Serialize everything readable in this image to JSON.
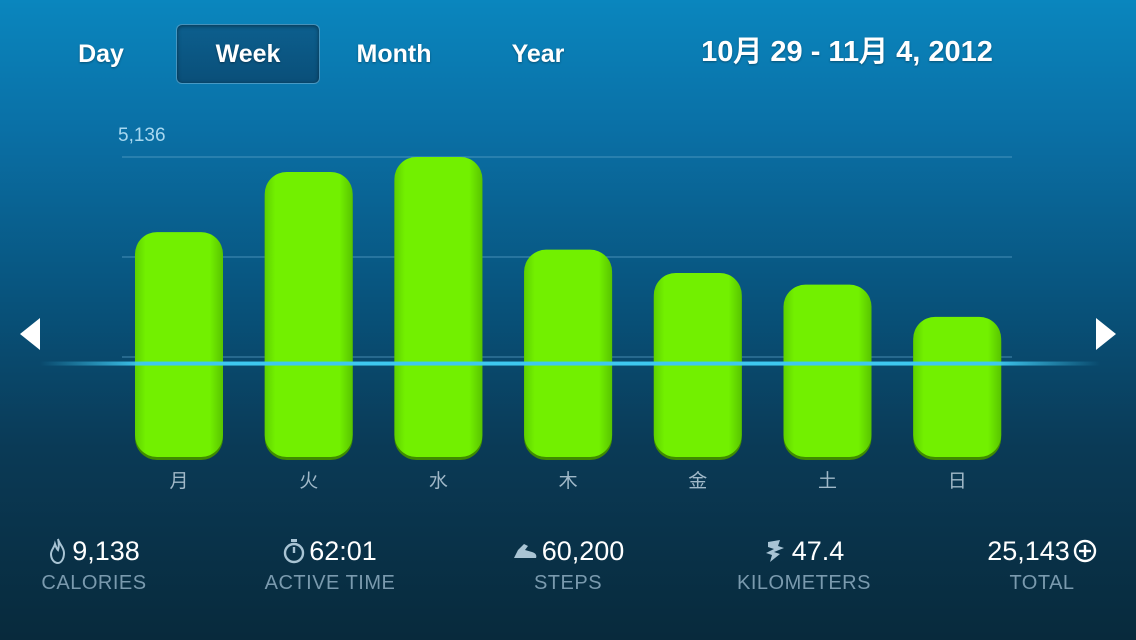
{
  "tabs": [
    {
      "label": "Day",
      "active": false
    },
    {
      "label": "Week",
      "active": true
    },
    {
      "label": "Month",
      "active": false
    },
    {
      "label": "Year",
      "active": false
    }
  ],
  "date_range": "10月 29 - 11月 4, 2012",
  "navigation": {
    "prev_icon": "triangle-left-icon",
    "next_icon": "triangle-right-icon"
  },
  "chart_data": {
    "type": "bar",
    "categories": [
      "月",
      "火",
      "水",
      "木",
      "金",
      "土",
      "日"
    ],
    "values": [
      3850,
      4880,
      5136,
      3550,
      3150,
      2950,
      2400
    ],
    "max_label": "5,136",
    "ylim": [
      0,
      5136
    ],
    "goal_line_value": 1600,
    "grid": true,
    "colors": {
      "bar": "#6ff000",
      "bar_shadow": "#3f8c00",
      "goal_line": "#3ec8f0",
      "grid": "#5fa5cc"
    }
  },
  "stats": [
    {
      "value": "9,138",
      "label": "CALORIES",
      "icon": "flame-icon"
    },
    {
      "value": "62:01",
      "label": "ACTIVE TIME",
      "icon": "stopwatch-icon"
    },
    {
      "value": "60,200",
      "label": "STEPS",
      "icon": "shoe-icon"
    },
    {
      "value": "47.4",
      "label": "KILOMETERS",
      "icon": "runner-icon"
    },
    {
      "value": "25,143",
      "label": "TOTAL",
      "icon": "fuel-plus-icon"
    }
  ]
}
